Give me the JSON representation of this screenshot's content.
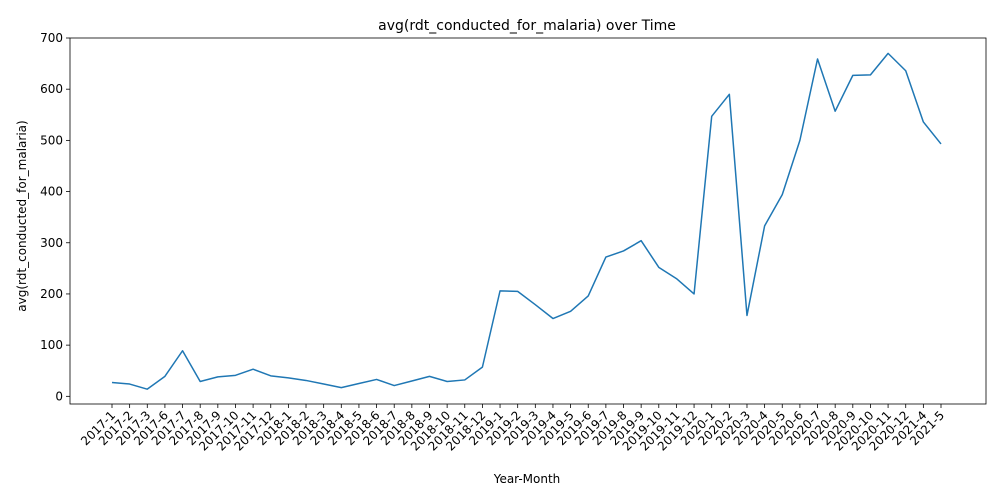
{
  "chart_data": {
    "type": "line",
    "title": "avg(rdt_conducted_for_malaria) over Time",
    "xlabel": "Year-Month",
    "ylabel": "avg(rdt_conducted_for_malaria)",
    "ylim": [
      -15,
      700
    ],
    "yticks": [
      0,
      100,
      200,
      300,
      400,
      500,
      600,
      700
    ],
    "grid": false,
    "color": "#1f77b4",
    "categories": [
      "2017-1",
      "2017-2",
      "2017-3",
      "2017-6",
      "2017-7",
      "2017-8",
      "2017-9",
      "2017-10",
      "2017-11",
      "2017-12",
      "2018-1",
      "2018-2",
      "2018-3",
      "2018-4",
      "2018-5",
      "2018-6",
      "2018-7",
      "2018-8",
      "2018-9",
      "2018-10",
      "2018-11",
      "2018-12",
      "2019-1",
      "2019-2",
      "2019-3",
      "2019-4",
      "2019-5",
      "2019-6",
      "2019-7",
      "2019-8",
      "2019-9",
      "2019-10",
      "2019-11",
      "2019-12",
      "2020-1",
      "2020-2",
      "2020-3",
      "2020-4",
      "2020-5",
      "2020-6",
      "2020-7",
      "2020-8",
      "2020-9",
      "2020-10",
      "2020-11",
      "2020-12",
      "2021-4",
      "2021-5"
    ],
    "values": [
      27,
      24,
      14,
      39,
      89,
      29,
      38,
      41,
      53,
      40,
      36,
      31,
      24,
      17,
      25,
      33,
      21,
      30,
      39,
      29,
      32,
      57,
      206,
      205,
      179,
      152,
      166,
      196,
      272,
      284,
      304,
      252,
      230,
      200,
      547,
      590,
      158,
      333,
      394,
      500,
      659,
      557,
      627,
      628,
      670,
      636,
      536,
      493
    ]
  }
}
